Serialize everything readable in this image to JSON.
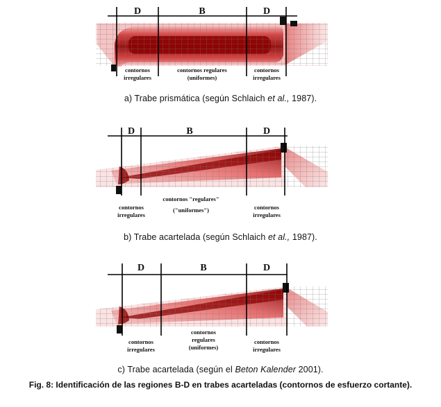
{
  "panels": [
    {
      "id": "a",
      "region_labels": [
        "D",
        "B",
        "D"
      ],
      "notes": {
        "left": [
          "contornos",
          "irregulares"
        ],
        "middle": [
          "contornos regulares",
          "(uniformes)"
        ],
        "right": [
          "contornos",
          "irregulares"
        ]
      },
      "caption": {
        "prefix": "a) Trabe prismática (según Schlaich ",
        "italic": "et al.,",
        "suffix": " 1987)."
      }
    },
    {
      "id": "b",
      "region_labels": [
        "D",
        "B",
        "D"
      ],
      "notes": {
        "left": [
          "contornos",
          "irregulares"
        ],
        "middle": [
          "contornos \"regulares\"",
          "(\"uniformes\")"
        ],
        "right": [
          "contornos",
          "irregulares"
        ]
      },
      "caption": {
        "prefix": "b) Trabe acartelada (según Schlaich ",
        "italic": "et al.,",
        "suffix": " 1987)."
      }
    },
    {
      "id": "c",
      "region_labels": [
        "D",
        "B",
        "D"
      ],
      "notes": {
        "left": [
          "contornos",
          "irregulares"
        ],
        "middle": [
          "contornos",
          "regulares",
          "(uniformes)"
        ],
        "right": [
          "contornos",
          "irregulares"
        ]
      },
      "caption": {
        "prefix": "c) Trabe acartelada (según el ",
        "italic": "Beton Kalender",
        "suffix": " 2001)."
      }
    }
  ],
  "figure_caption": "Fig. 8: Identificación de las regiones B-D en trabes acarteladas (contornos de esfuerzo cortante).",
  "colors": {
    "dark": "#8b0000",
    "red": "#d42a2a",
    "pink": "#f0a0a0",
    "light": "#fbe3e3"
  }
}
